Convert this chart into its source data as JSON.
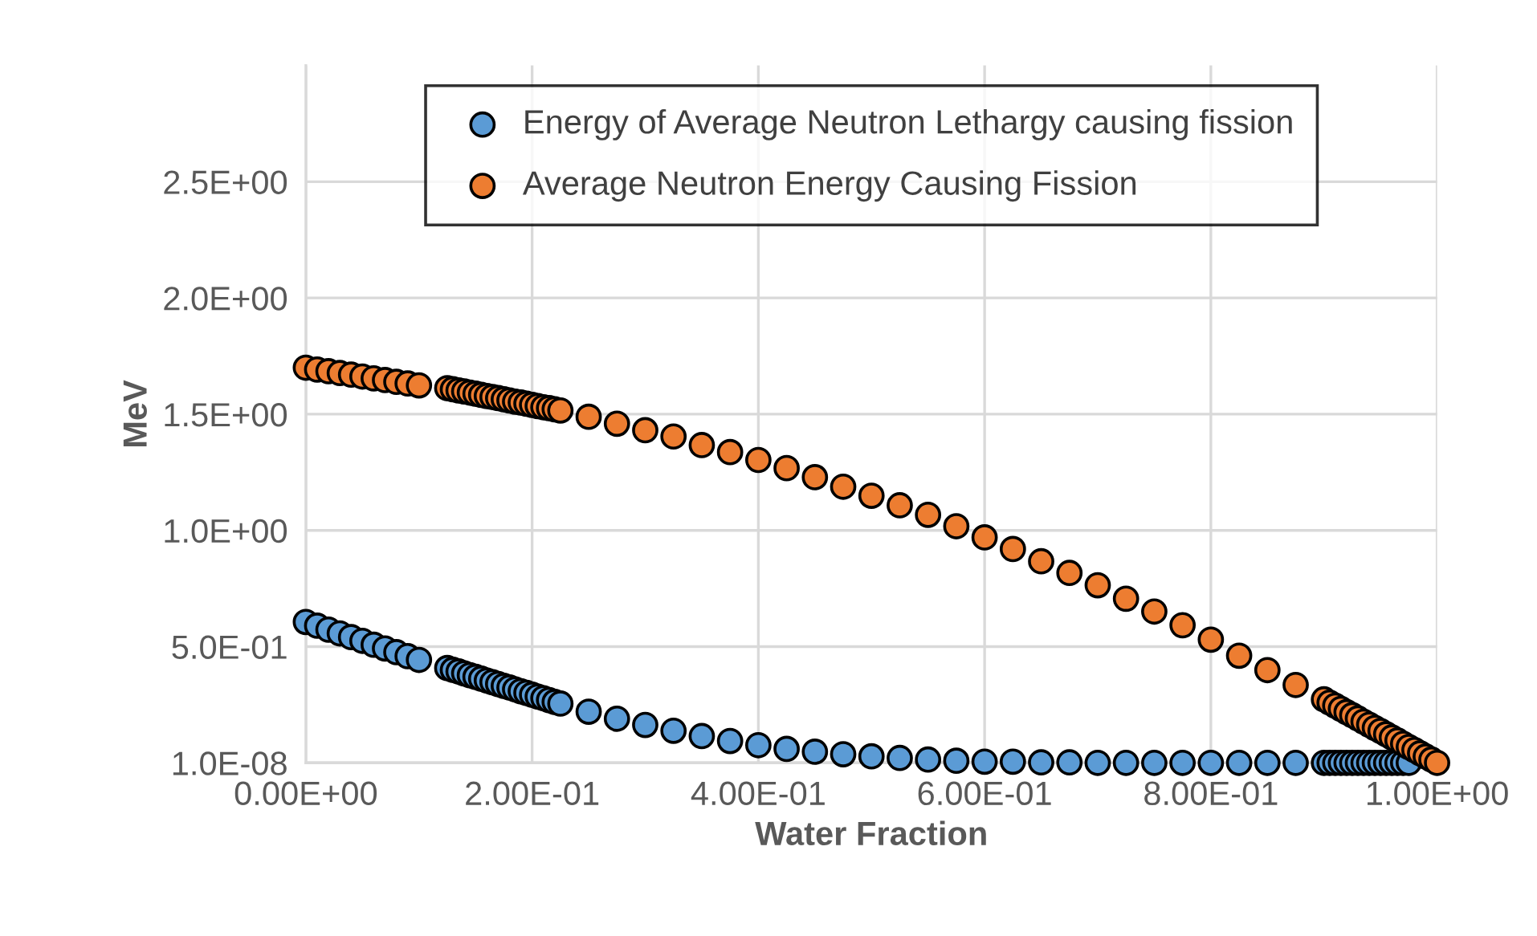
{
  "chart_data": {
    "type": "scatter",
    "xlabel": "Water Fraction",
    "ylabel": "MeV",
    "x": [
      0,
      0.01,
      0.02,
      0.03,
      0.04,
      0.05,
      0.06,
      0.07,
      0.08,
      0.09,
      0.1,
      0.125,
      0.13,
      0.135,
      0.14,
      0.145,
      0.15,
      0.155,
      0.16,
      0.165,
      0.17,
      0.175,
      0.18,
      0.185,
      0.19,
      0.195,
      0.2,
      0.205,
      0.21,
      0.215,
      0.22,
      0.225,
      0.25,
      0.275,
      0.3,
      0.325,
      0.35,
      0.375,
      0.4,
      0.425,
      0.45,
      0.475,
      0.5,
      0.525,
      0.55,
      0.575,
      0.6,
      0.625,
      0.65,
      0.675,
      0.7,
      0.725,
      0.75,
      0.775,
      0.8,
      0.825,
      0.85,
      0.875,
      0.9,
      0.905,
      0.91,
      0.915,
      0.92,
      0.925,
      0.93,
      0.935,
      0.94,
      0.945,
      0.95,
      0.955,
      0.96,
      0.965,
      0.97,
      0.975,
      0.98,
      0.985,
      0.99,
      0.995,
      1.0
    ],
    "series": [
      {
        "name": "Energy of Average Neutron Lethargy causing fission",
        "color": "#5b9bd5",
        "x": [
          0,
          0.01,
          0.02,
          0.03,
          0.04,
          0.05,
          0.06,
          0.07,
          0.08,
          0.09,
          0.1,
          0.125,
          0.13,
          0.135,
          0.14,
          0.145,
          0.15,
          0.155,
          0.16,
          0.165,
          0.17,
          0.175,
          0.18,
          0.185,
          0.19,
          0.195,
          0.2,
          0.205,
          0.21,
          0.215,
          0.22,
          0.225,
          0.25,
          0.275,
          0.3,
          0.325,
          0.35,
          0.375,
          0.4,
          0.425,
          0.45,
          0.475,
          0.5,
          0.525,
          0.55,
          0.575,
          0.6,
          0.625,
          0.65,
          0.675,
          0.7,
          0.725,
          0.75,
          0.775,
          0.8,
          0.825,
          0.85,
          0.875,
          0.9,
          0.905,
          0.91,
          0.915,
          0.92,
          0.925,
          0.93,
          0.935,
          0.94,
          0.945,
          0.95,
          0.955,
          0.96,
          0.965,
          0.97,
          0.975
        ],
        "values": [
          0.606,
          0.59,
          0.573,
          0.557,
          0.541,
          0.525,
          0.508,
          0.492,
          0.476,
          0.459,
          0.443,
          0.408,
          0.4,
          0.393,
          0.385,
          0.377,
          0.37,
          0.362,
          0.354,
          0.347,
          0.339,
          0.331,
          0.324,
          0.316,
          0.308,
          0.301,
          0.293,
          0.285,
          0.278,
          0.27,
          0.262,
          0.255,
          0.22,
          0.19,
          0.163,
          0.138,
          0.115,
          0.094,
          0.076,
          0.06,
          0.048,
          0.037,
          0.028,
          0.021,
          0.014,
          0.009,
          0.005,
          0.005,
          0.002,
          0.002,
          1e-08,
          1e-08,
          1e-08,
          1e-08,
          1e-08,
          1e-08,
          1e-08,
          1e-08,
          1e-08,
          1e-08,
          1e-08,
          1e-08,
          1e-08,
          1e-08,
          1e-08,
          1e-08,
          1e-08,
          1e-08,
          1e-08,
          1e-08,
          1e-08,
          1e-08,
          1e-08,
          1e-08
        ]
      },
      {
        "name": "Average Neutron Energy Causing Fission",
        "color": "#ed7d31",
        "values": [
          1.7,
          1.692,
          1.685,
          1.677,
          1.67,
          1.662,
          1.654,
          1.647,
          1.639,
          1.632,
          1.624,
          1.612,
          1.607,
          1.602,
          1.598,
          1.593,
          1.588,
          1.583,
          1.578,
          1.574,
          1.569,
          1.564,
          1.559,
          1.554,
          1.55,
          1.545,
          1.54,
          1.535,
          1.53,
          1.526,
          1.521,
          1.516,
          1.489,
          1.459,
          1.431,
          1.404,
          1.367,
          1.337,
          1.303,
          1.268,
          1.229,
          1.188,
          1.149,
          1.108,
          1.067,
          1.018,
          0.97,
          0.92,
          0.867,
          0.817,
          0.764,
          0.706,
          0.651,
          0.592,
          0.53,
          0.461,
          0.399,
          0.335,
          0.273,
          0.259,
          0.246,
          0.232,
          0.218,
          0.205,
          0.191,
          0.177,
          0.164,
          0.15,
          0.137,
          0.123,
          0.109,
          0.096,
          0.082,
          0.068,
          0.055,
          0.041,
          0.027,
          0.014,
          1e-08
        ]
      }
    ],
    "xlim": [
      0,
      1.0
    ],
    "ylim": [
      1e-08,
      3.0
    ],
    "xticks": [
      {
        "value": 0,
        "label": "0.00E+00"
      },
      {
        "value": 0.2,
        "label": "2.00E-01"
      },
      {
        "value": 0.4,
        "label": "4.00E-01"
      },
      {
        "value": 0.6,
        "label": "6.00E-01"
      },
      {
        "value": 0.8,
        "label": "8.00E-01"
      },
      {
        "value": 1.0,
        "label": "1.00E+00"
      }
    ],
    "yticks": [
      {
        "value": 1e-08,
        "label": "1.0E-08"
      },
      {
        "value": 0.5,
        "label": "5.0E-01"
      },
      {
        "value": 1.0,
        "label": "1.0E+00"
      },
      {
        "value": 1.5,
        "label": "1.5E+00"
      },
      {
        "value": 2.0,
        "label": "2.0E+00"
      },
      {
        "value": 2.5,
        "label": "2.5E+00"
      }
    ],
    "grid": true,
    "legend": "top",
    "marker": "circle"
  }
}
